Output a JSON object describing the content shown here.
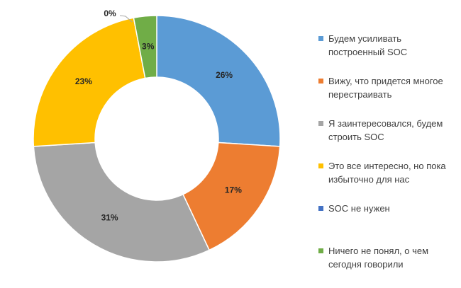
{
  "chart_data": {
    "type": "pie",
    "subtype": "donut",
    "series": [
      {
        "name": "Будем усиливать построенный SOC",
        "value": 26,
        "label": "26%",
        "color": "#5B9BD5"
      },
      {
        "name": "Вижу, что придется многое перестраивать",
        "value": 17,
        "label": "17%",
        "color": "#ED7D31"
      },
      {
        "name": "Я заинтересовался, будем строить SOC",
        "value": 31,
        "label": "31%",
        "color": "#A5A5A5"
      },
      {
        "name": "Это все интересно, но пока избыточно для нас",
        "value": 23,
        "label": "23%",
        "color": "#FFC000"
      },
      {
        "name": "SOC не нужен",
        "value": 0,
        "label": "0%",
        "color": "#4472C4"
      },
      {
        "name": "Ничего не понял, о чем сегодня говорили",
        "value": 3,
        "label": "3%",
        "color": "#70AD47"
      }
    ],
    "legend_position": "right"
  }
}
